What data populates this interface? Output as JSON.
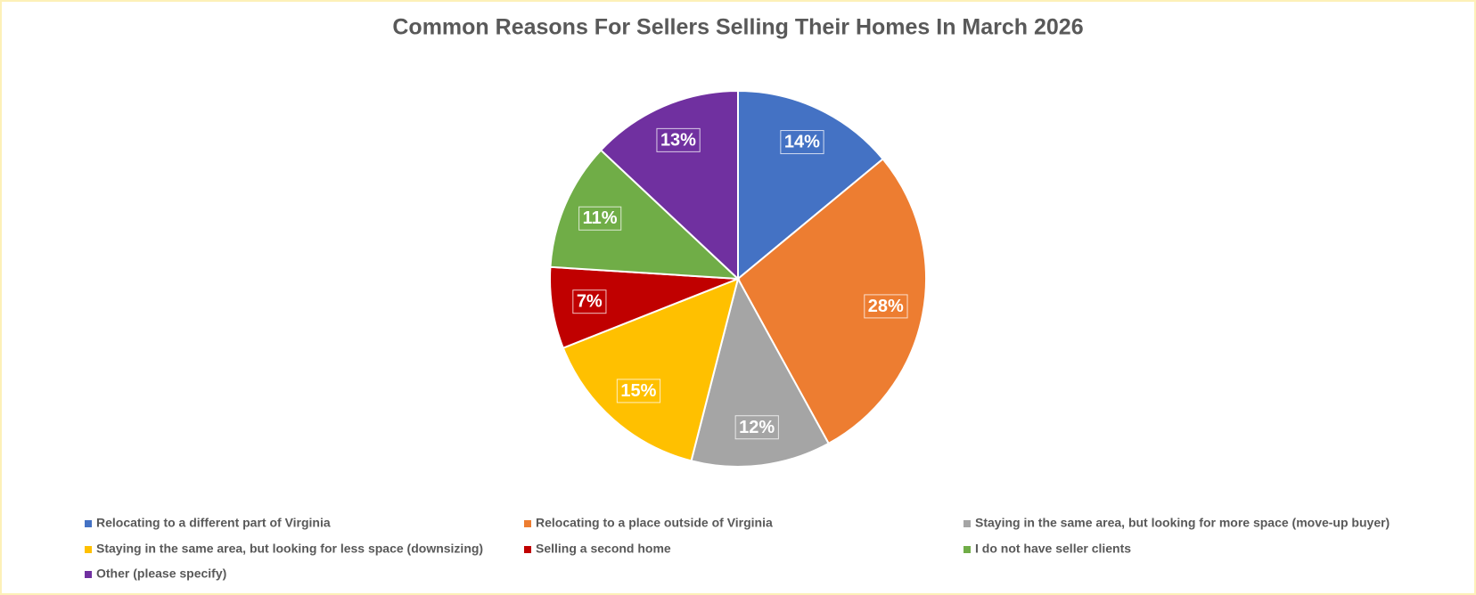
{
  "chart_data": {
    "type": "pie",
    "title": "Common Reasons For Sellers Selling Their Homes In March 2026",
    "categories": [
      "Relocating to a different part of Virginia",
      "Relocating to a place outside of Virginia",
      "Staying in the same area, but looking for more space (move-up buyer)",
      "Staying in the same area, but looking for less space (downsizing)",
      "Selling a second home",
      "I do not have seller clients",
      "Other (please specify)"
    ],
    "values": [
      14,
      28,
      12,
      15,
      7,
      11,
      13
    ],
    "value_labels": [
      "14%",
      "28%",
      "12%",
      "15%",
      "7%",
      "11%",
      "13%"
    ],
    "colors": [
      "#4472c4",
      "#ed7d31",
      "#a5a5a5",
      "#ffc000",
      "#c00000",
      "#70ad47",
      "#7030a0"
    ]
  }
}
